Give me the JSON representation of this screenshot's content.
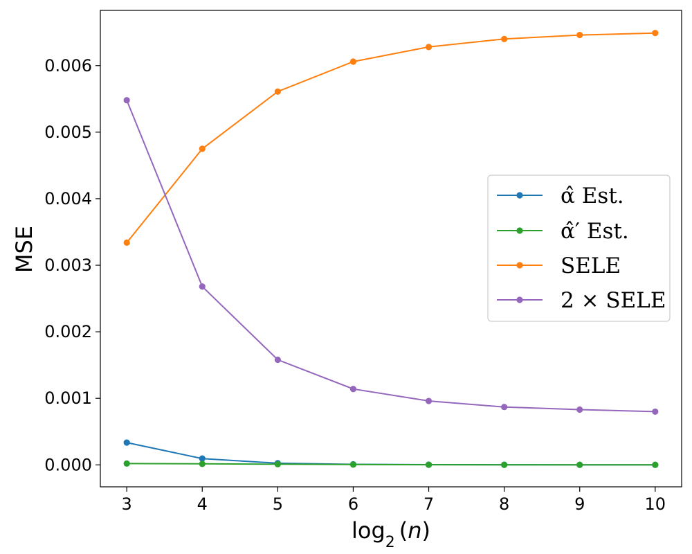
{
  "chart_data": {
    "type": "line",
    "xlabel": "log₂(n)",
    "ylabel": "MSE",
    "x": [
      3,
      4,
      5,
      6,
      7,
      8,
      9,
      10
    ],
    "xlim": [
      2.65,
      10.35
    ],
    "ylim": [
      -0.00033,
      0.00683
    ],
    "x_ticks": [
      3,
      4,
      5,
      6,
      7,
      8,
      9,
      10
    ],
    "x_tick_labels": [
      "3",
      "4",
      "5",
      "6",
      "7",
      "8",
      "9",
      "10"
    ],
    "y_ticks": [
      0,
      0.001,
      0.002,
      0.003,
      0.004,
      0.005,
      0.006
    ],
    "y_tick_labels": [
      "0.000",
      "0.001",
      "0.002",
      "0.003",
      "0.004",
      "0.005",
      "0.006"
    ],
    "grid": false,
    "legend_position": "center-right",
    "series": [
      {
        "name": "α̂ Est.",
        "color": "#1f77b4",
        "values": [
          0.000335,
          9.5e-05,
          2.5e-05,
          8e-06,
          3e-06,
          2e-06,
          1e-06,
          1e-06
        ]
      },
      {
        "name": "α̂′ Est.",
        "color": "#2ca02c",
        "values": [
          2e-05,
          1.5e-05,
          1e-05,
          5e-06,
          2e-06,
          1e-06,
          1e-06,
          1e-06
        ]
      },
      {
        "name": "SELE",
        "color": "#ff7f0e",
        "values": [
          0.00334,
          0.00475,
          0.00561,
          0.00606,
          0.00628,
          0.0064,
          0.00646,
          0.00649
        ]
      },
      {
        "name": "2 × SELE",
        "color": "#9467bd",
        "values": [
          0.00548,
          0.00268,
          0.00158,
          0.00114,
          0.00096,
          0.00087,
          0.00083,
          0.0008
        ]
      }
    ]
  }
}
